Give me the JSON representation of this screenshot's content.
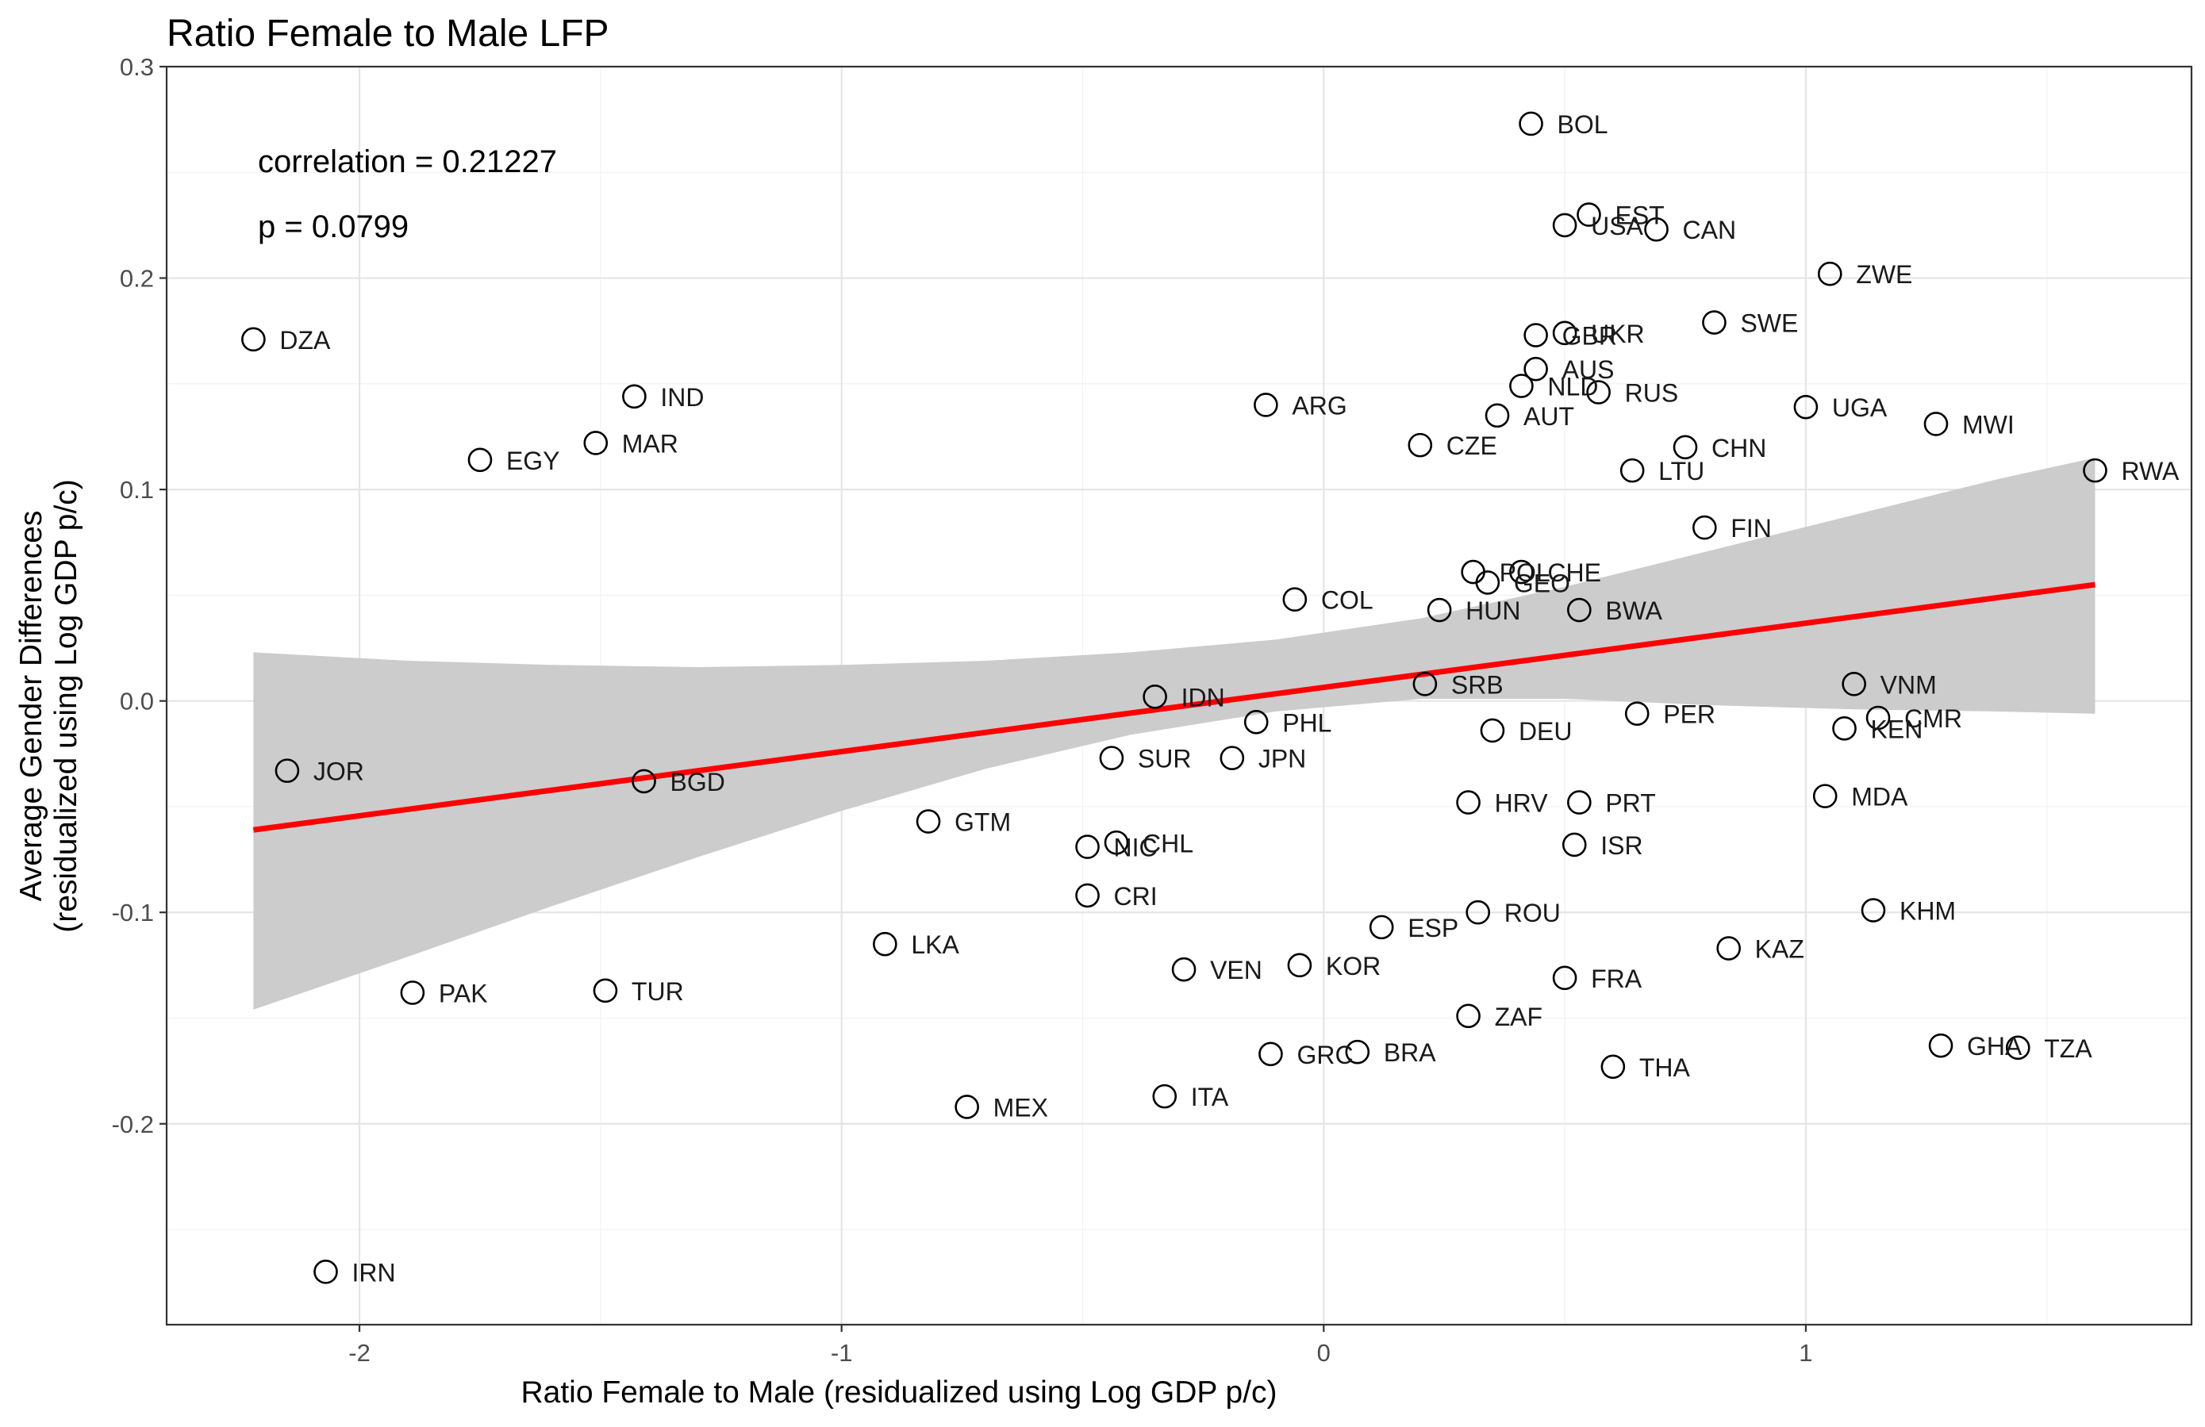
{
  "chart_data": {
    "type": "scatter",
    "title": "Ratio Female to Male LFP",
    "xlabel": "Ratio Female to Male (residualized using Log GDP p/c)",
    "ylabel_lines": [
      "Average Gender Differences",
      "(residualized using Log GDP p/c)"
    ],
    "xlim": [
      -2.4,
      1.8
    ],
    "ylim": [
      -0.295,
      0.3
    ],
    "x_ticks": [
      -2,
      -1,
      0,
      1
    ],
    "x_tick_labels": [
      "-2",
      "-1",
      "0",
      "1"
    ],
    "y_ticks": [
      0.3,
      0.2,
      0.1,
      0.0,
      -0.1,
      -0.2
    ],
    "y_tick_labels": [
      "0.3",
      "0.2",
      "0.1",
      "0.0",
      "-0.1",
      "-0.2"
    ],
    "grid": true,
    "annotations": [
      "correlation = 0.21227",
      "p = 0.0799"
    ],
    "fit": {
      "x_range": [
        -2.22,
        1.6
      ],
      "y_start": -0.061,
      "y_end": 0.055,
      "color": "#ff0000",
      "band_color": "#cccccc",
      "band": [
        [
          -2.22,
          -0.146,
          0.023
        ],
        [
          -1.9,
          -0.121,
          0.019
        ],
        [
          -1.6,
          -0.097,
          0.017
        ],
        [
          -1.3,
          -0.074,
          0.016
        ],
        [
          -1.0,
          -0.052,
          0.017
        ],
        [
          -0.7,
          -0.032,
          0.019
        ],
        [
          -0.4,
          -0.016,
          0.023
        ],
        [
          -0.1,
          -0.005,
          0.029
        ],
        [
          0.2,
          0.001,
          0.039
        ],
        [
          0.5,
          0.001,
          0.054
        ],
        [
          0.8,
          -0.002,
          0.071
        ],
        [
          1.1,
          -0.004,
          0.088
        ],
        [
          1.4,
          -0.005,
          0.105
        ],
        [
          1.6,
          -0.006,
          0.115
        ]
      ]
    },
    "points": [
      {
        "label": "BOL",
        "x": 0.43,
        "y": 0.273
      },
      {
        "label": "EST",
        "x": 0.55,
        "y": 0.23
      },
      {
        "label": "USA",
        "x": 0.5,
        "y": 0.225
      },
      {
        "label": "CAN",
        "x": 0.69,
        "y": 0.223
      },
      {
        "label": "ZWE",
        "x": 1.05,
        "y": 0.202
      },
      {
        "label": "DZA",
        "x": -2.22,
        "y": 0.171
      },
      {
        "label": "SWE",
        "x": 0.81,
        "y": 0.179
      },
      {
        "label": "GBR",
        "x": 0.44,
        "y": 0.173
      },
      {
        "label": "UKR",
        "x": 0.5,
        "y": 0.174
      },
      {
        "label": "AUS",
        "x": 0.44,
        "y": 0.157
      },
      {
        "label": "NLD",
        "x": 0.41,
        "y": 0.149
      },
      {
        "label": "RUS",
        "x": 0.57,
        "y": 0.146
      },
      {
        "label": "IND",
        "x": -1.43,
        "y": 0.144
      },
      {
        "label": "ARG",
        "x": -0.12,
        "y": 0.14
      },
      {
        "label": "UGA",
        "x": 1.0,
        "y": 0.139
      },
      {
        "label": "AUT",
        "x": 0.36,
        "y": 0.135
      },
      {
        "label": "MWI",
        "x": 1.27,
        "y": 0.131
      },
      {
        "label": "MAR",
        "x": -1.51,
        "y": 0.122
      },
      {
        "label": "EGY",
        "x": -1.75,
        "y": 0.114
      },
      {
        "label": "CZE",
        "x": 0.2,
        "y": 0.121
      },
      {
        "label": "CHN",
        "x": 0.75,
        "y": 0.12
      },
      {
        "label": "LTU",
        "x": 0.64,
        "y": 0.109
      },
      {
        "label": "RWA",
        "x": 1.6,
        "y": 0.109
      },
      {
        "label": "FIN",
        "x": 0.79,
        "y": 0.082
      },
      {
        "label": "POL",
        "x": 0.31,
        "y": 0.061
      },
      {
        "label": "CHE",
        "x": 0.41,
        "y": 0.061
      },
      {
        "label": "GEO",
        "x": 0.34,
        "y": 0.056
      },
      {
        "label": "COL",
        "x": -0.06,
        "y": 0.048
      },
      {
        "label": "HUN",
        "x": 0.24,
        "y": 0.043
      },
      {
        "label": "BWA",
        "x": 0.53,
        "y": 0.043
      },
      {
        "label": "IDN",
        "x": -0.35,
        "y": 0.002
      },
      {
        "label": "SRB",
        "x": 0.21,
        "y": 0.008
      },
      {
        "label": "VNM",
        "x": 1.1,
        "y": 0.008
      },
      {
        "label": "PHL",
        "x": -0.14,
        "y": -0.01
      },
      {
        "label": "DEU",
        "x": 0.35,
        "y": -0.014
      },
      {
        "label": "PER",
        "x": 0.65,
        "y": -0.006
      },
      {
        "label": "CMR",
        "x": 1.15,
        "y": -0.008
      },
      {
        "label": "KEN",
        "x": 1.08,
        "y": -0.013
      },
      {
        "label": "JOR",
        "x": -2.15,
        "y": -0.033
      },
      {
        "label": "SUR",
        "x": -0.44,
        "y": -0.027
      },
      {
        "label": "JPN",
        "x": -0.19,
        "y": -0.027
      },
      {
        "label": "BGD",
        "x": -1.41,
        "y": -0.038
      },
      {
        "label": "GTM",
        "x": -0.82,
        "y": -0.057
      },
      {
        "label": "HRV",
        "x": 0.3,
        "y": -0.048
      },
      {
        "label": "PRT",
        "x": 0.53,
        "y": -0.048
      },
      {
        "label": "MDA",
        "x": 1.04,
        "y": -0.045
      },
      {
        "label": "NIC",
        "x": -0.49,
        "y": -0.069
      },
      {
        "label": "CHL",
        "x": -0.43,
        "y": -0.067
      },
      {
        "label": "ISR",
        "x": 0.52,
        "y": -0.068
      },
      {
        "label": "CRI",
        "x": -0.49,
        "y": -0.092
      },
      {
        "label": "ROU",
        "x": 0.32,
        "y": -0.1
      },
      {
        "label": "ESP",
        "x": 0.12,
        "y": -0.107
      },
      {
        "label": "KHM",
        "x": 1.14,
        "y": -0.099
      },
      {
        "label": "LKA",
        "x": -0.91,
        "y": -0.115
      },
      {
        "label": "KAZ",
        "x": 0.84,
        "y": -0.117
      },
      {
        "label": "VEN",
        "x": -0.29,
        "y": -0.127
      },
      {
        "label": "KOR",
        "x": -0.05,
        "y": -0.125
      },
      {
        "label": "FRA",
        "x": 0.5,
        "y": -0.131
      },
      {
        "label": "PAK",
        "x": -1.89,
        "y": -0.138
      },
      {
        "label": "TUR",
        "x": -1.49,
        "y": -0.137
      },
      {
        "label": "ZAF",
        "x": 0.3,
        "y": -0.149
      },
      {
        "label": "GRC",
        "x": -0.11,
        "y": -0.167
      },
      {
        "label": "BRA",
        "x": 0.07,
        "y": -0.166
      },
      {
        "label": "THA",
        "x": 0.6,
        "y": -0.173
      },
      {
        "label": "GHA",
        "x": 1.28,
        "y": -0.163
      },
      {
        "label": "TZA",
        "x": 1.44,
        "y": -0.164
      },
      {
        "label": "ITA",
        "x": -0.33,
        "y": -0.187
      },
      {
        "label": "MEX",
        "x": -0.74,
        "y": -0.192
      },
      {
        "label": "IRN",
        "x": -2.07,
        "y": -0.27
      }
    ]
  }
}
